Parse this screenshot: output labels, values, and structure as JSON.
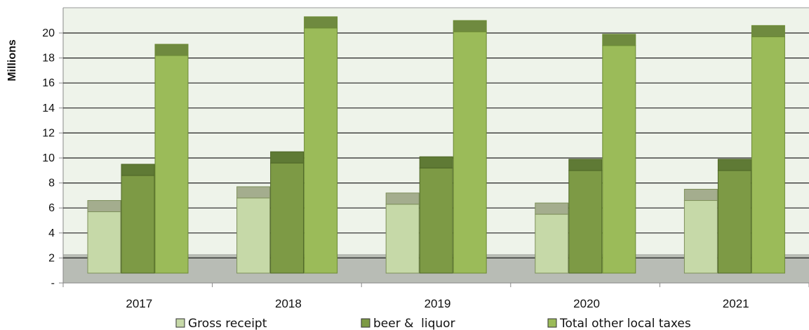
{
  "chart_data": {
    "type": "bar",
    "categories": [
      "2017",
      "2018",
      "2019",
      "2020",
      "2021"
    ],
    "series": [
      {
        "name": "Gross receipt",
        "values": [
          5.7,
          6.8,
          6.3,
          5.5,
          6.6
        ]
      },
      {
        "name": "beer &  liquor",
        "values": [
          8.6,
          9.6,
          9.2,
          9.0,
          9.0
        ]
      },
      {
        "name": "Total other local taxes",
        "values": [
          18.2,
          20.4,
          20.1,
          19.0,
          19.7
        ]
      }
    ],
    "ylabel": "Millions",
    "xlabel": "",
    "ylim": [
      0,
      22
    ],
    "yticks": [
      0,
      2,
      4,
      6,
      8,
      10,
      12,
      14,
      16,
      18,
      20
    ],
    "ytick_labels": [
      "-",
      "2",
      "4",
      "6",
      "8",
      "10",
      "12",
      "14",
      "16",
      "18",
      "20"
    ],
    "grid": true,
    "style": "3d",
    "legend_position": "bottom",
    "colors": {
      "Gross receipt": "#c6d9a8",
      "beer &  liquor": "#7d9a45",
      "Total other local taxes": "#9bbb59",
      "grid": "#222222",
      "plot_bg": "#eef3ea",
      "floor": "#b8bcb5"
    }
  }
}
